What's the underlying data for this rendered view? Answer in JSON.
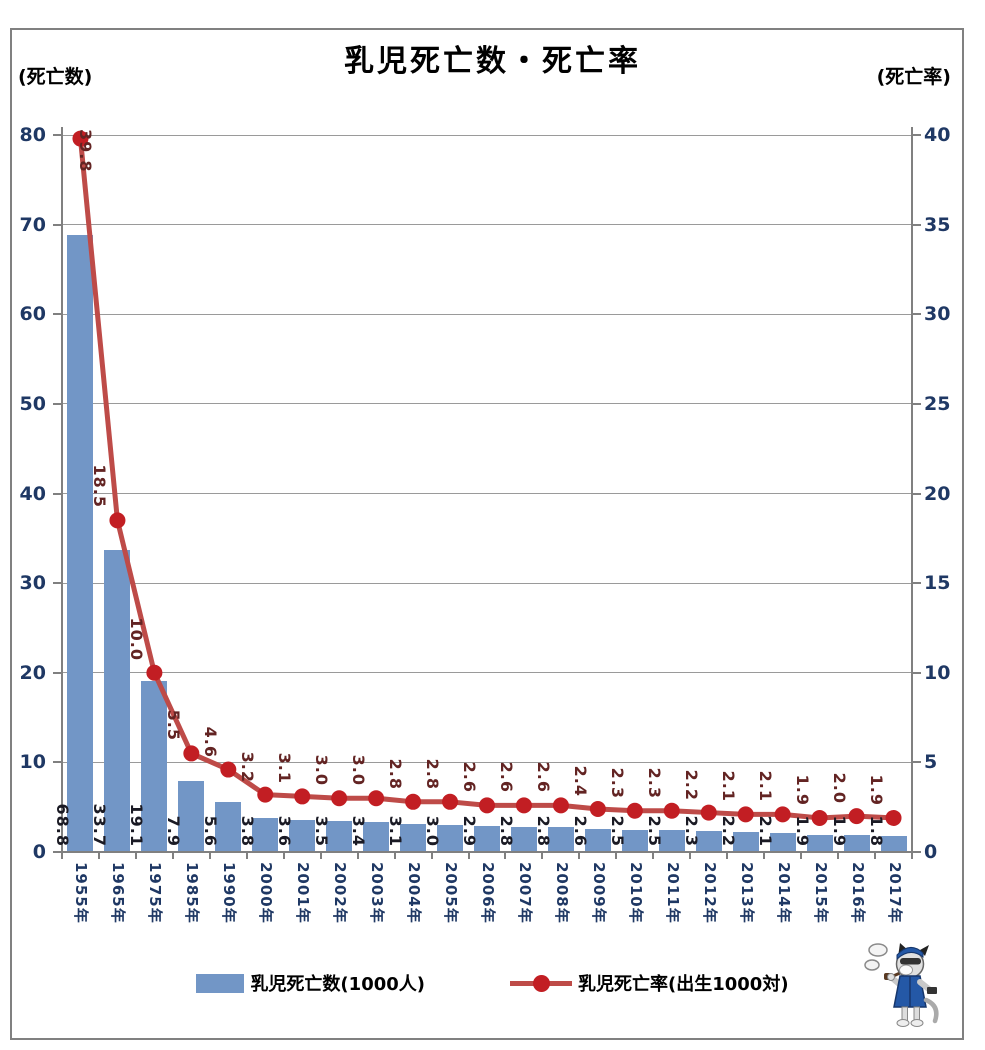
{
  "header": {
    "title": "乳児死亡数・死亡率",
    "left_axis_unit": "(死亡数)",
    "right_axis_unit": "(死亡率)"
  },
  "chart_data": {
    "type": "bar+line combo",
    "title": "乳児死亡数・死亡率",
    "grid": true,
    "legend_position": "bottom",
    "categories": [
      "1955年",
      "1965年",
      "1975年",
      "1985年",
      "1990年",
      "2000年",
      "2001年",
      "2002年",
      "2003年",
      "2004年",
      "2005年",
      "2006年",
      "2007年",
      "2008年",
      "2009年",
      "2010年",
      "2011年",
      "2012年",
      "2013年",
      "2014年",
      "2015年",
      "2016年",
      "2017年"
    ],
    "left_axis": {
      "unit_label": "(死亡数)",
      "min": 0,
      "max": 80,
      "ticks": [
        0,
        10,
        20,
        30,
        40,
        50,
        60,
        70,
        80
      ]
    },
    "right_axis": {
      "unit_label": "(死亡率)",
      "min": 0,
      "max": 40,
      "ticks": [
        0,
        5,
        10,
        15,
        20,
        25,
        30,
        35,
        40
      ]
    },
    "series": [
      {
        "name": "乳児死亡数(1000人)",
        "type": "bar",
        "axis": "left",
        "color": "#7296C6",
        "label_color": "#1A1A24",
        "values": [
          68.8,
          33.7,
          19.1,
          7.9,
          5.6,
          3.8,
          3.6,
          3.5,
          3.4,
          3.1,
          3.0,
          2.9,
          2.8,
          2.8,
          2.6,
          2.5,
          2.5,
          2.3,
          2.2,
          2.1,
          1.9,
          1.9,
          1.8
        ],
        "labels": [
          "68.8",
          "33.7",
          "19.1",
          "7.9",
          "5.6",
          "3.8",
          "3.6",
          "3.5",
          "3.4",
          "3.1",
          "3.0",
          "2.9",
          "2.8",
          "2.8",
          "2.6",
          "2.5",
          "2.5",
          "2.3",
          "2.2",
          "2.1",
          "1.9",
          "1.9",
          "1.8"
        ]
      },
      {
        "name": "乳児死亡率(出生1000対)",
        "type": "line",
        "axis": "right",
        "color": "#BE4B48",
        "marker_color": "#C21E23",
        "label_color": "#632423",
        "values": [
          39.8,
          18.5,
          10.0,
          5.5,
          4.6,
          3.2,
          3.1,
          3.0,
          3.0,
          2.8,
          2.8,
          2.6,
          2.6,
          2.6,
          2.4,
          2.3,
          2.3,
          2.2,
          2.1,
          2.1,
          1.9,
          2.0,
          1.9
        ],
        "labels": [
          "39.8",
          "18.5",
          "10.0",
          "5.5",
          "4.6",
          "3.2",
          "3.1",
          "3.0",
          "3.0",
          "2.8",
          "2.8",
          "2.6",
          "2.6",
          "2.6",
          "2.4",
          "2.3",
          "2.3",
          "2.2",
          "2.1",
          "2.1",
          "1.9",
          "2.0",
          "1.9"
        ]
      }
    ]
  }
}
